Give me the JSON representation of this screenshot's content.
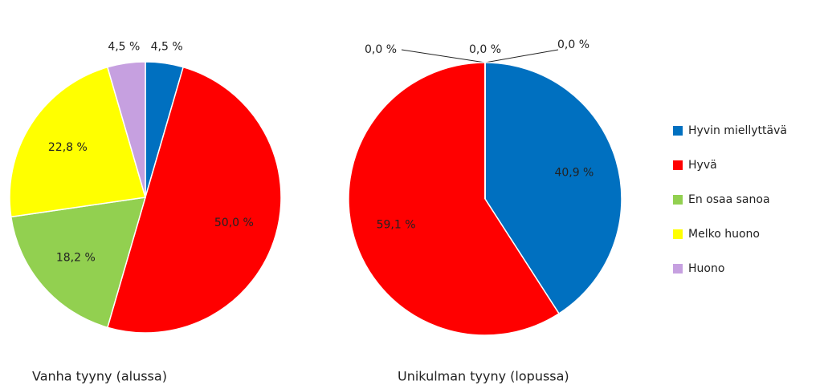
{
  "chart_data": [
    {
      "type": "pie",
      "title": "Vanha tyyny (alussa)",
      "values": [
        4.5,
        50.0,
        18.2,
        22.8,
        4.5
      ],
      "value_labels": [
        "4,5 %",
        "50,0 %",
        "18,2 %",
        "22,8 %",
        "4,5 %"
      ],
      "colors": [
        "#0070c0",
        "#ff0000",
        "#92d050",
        "#ffff00",
        "#c6a0e0"
      ]
    },
    {
      "type": "pie",
      "title": "Unikulman tyyny (lopussa)",
      "categories": [
        "Hyvin miellyttävä",
        "Hyvä",
        "En osaa sanoa",
        "Melko huono",
        "Huono"
      ],
      "values": [
        40.9,
        59.1,
        0.0,
        0.0,
        0.0
      ],
      "value_labels": [
        "40,9 %",
        "59,1 %",
        "0,0 %",
        "0,0 %",
        "0,0 %"
      ],
      "colors": [
        "#0070c0",
        "#ff0000",
        "#92d050",
        "#ffff00",
        "#c6a0e0"
      ],
      "legend": "right"
    }
  ]
}
